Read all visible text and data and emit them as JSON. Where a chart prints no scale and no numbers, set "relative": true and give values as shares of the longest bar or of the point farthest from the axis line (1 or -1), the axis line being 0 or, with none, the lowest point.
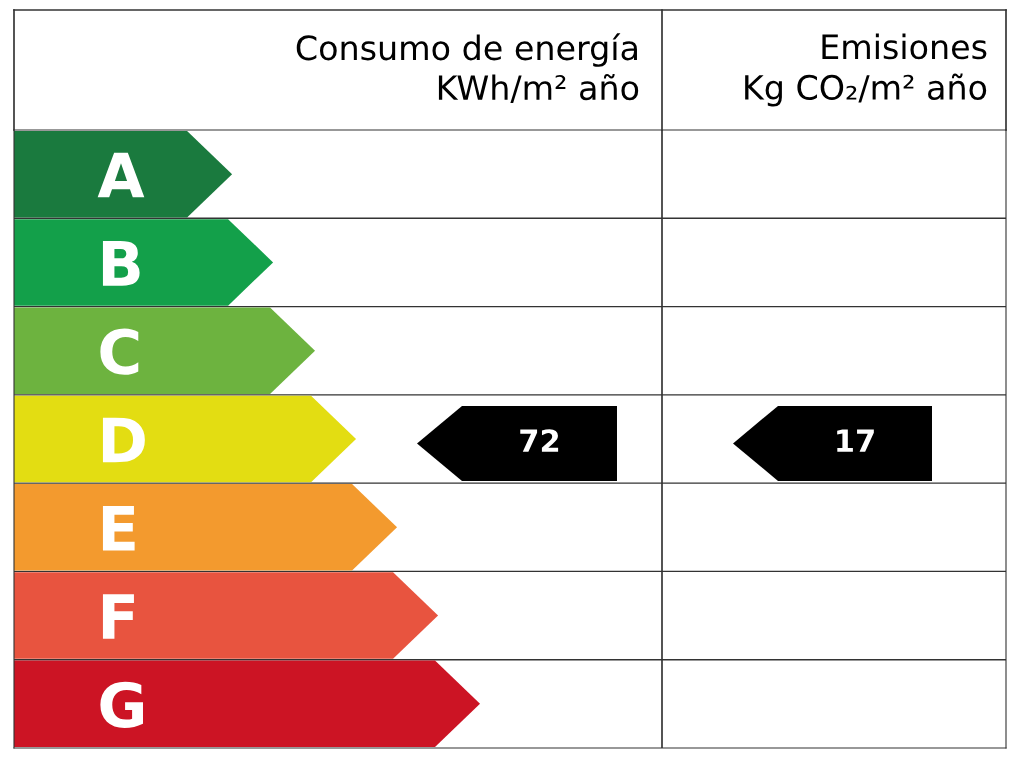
{
  "chart_data": {
    "type": "bar",
    "orientation": "horizontal",
    "relative": true,
    "title": "Consumo de energía\nKWh/m² año",
    "subtitle": "Emisiones\nKg CO₂/m² año",
    "categories": [
      "A",
      "B",
      "C",
      "D",
      "E",
      "F",
      "G"
    ],
    "values": [
      0.468,
      0.556,
      0.646,
      0.734,
      0.822,
      0.91,
      1
    ],
    "colors": [
      "#1a7a3e",
      "#13a04a",
      "#6db33f",
      "#e3dd12",
      "#f39a2e",
      "#e8543f",
      "#cc1424"
    ],
    "annotations": [
      "72",
      "17"
    ]
  }
}
